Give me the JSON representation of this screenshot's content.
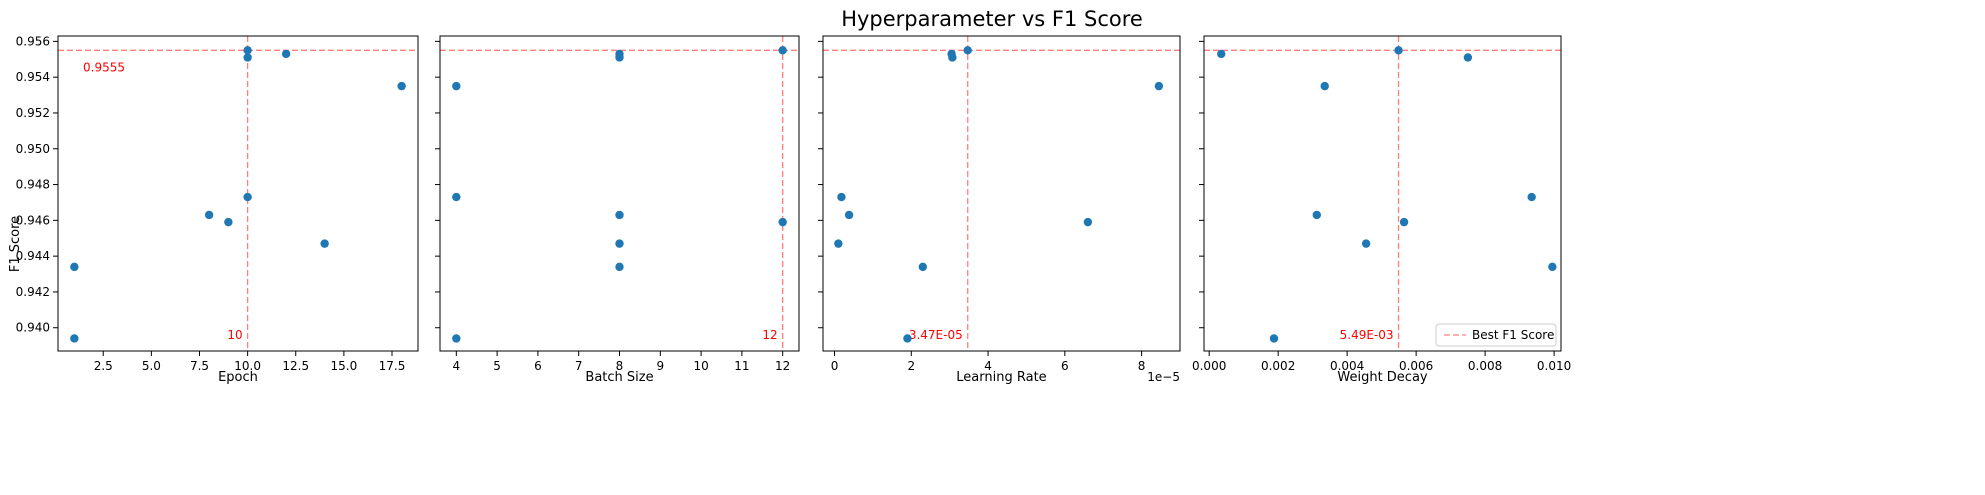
{
  "figure": {
    "title": "Hyperparameter vs F1 Score",
    "ylabel": "F1 Score",
    "legend": {
      "label": "Best F1 Score",
      "placement": "lower-right",
      "panel": 3
    }
  },
  "colors": {
    "points": "#1f77b4",
    "best_line": "#ff0000",
    "annotation": "#ff0000",
    "axes": "#000000"
  },
  "chart_data": [
    {
      "type": "scatter",
      "title": "",
      "xlabel": "Epoch",
      "ylabel": "F1 Score",
      "xlim": [
        0.15,
        18.85
      ],
      "ylim": [
        0.9387,
        0.9563
      ],
      "xticks": [
        2.5,
        5.0,
        7.5,
        10.0,
        12.5,
        15.0,
        17.5
      ],
      "xtick_labels": [
        "2.5",
        "5.0",
        "7.5",
        "10.0",
        "12.5",
        "15.0",
        "17.5"
      ],
      "yticks": [
        0.94,
        0.942,
        0.944,
        0.946,
        0.948,
        0.95,
        0.952,
        0.954,
        0.956
      ],
      "ytick_labels": [
        "0.940",
        "0.942",
        "0.944",
        "0.946",
        "0.948",
        "0.950",
        "0.952",
        "0.954",
        "0.956"
      ],
      "x": [
        1,
        1,
        8,
        9,
        10,
        10,
        10,
        12,
        14,
        18
      ],
      "y": [
        0.9394,
        0.9434,
        0.9463,
        0.9459,
        0.9473,
        0.9551,
        0.9555,
        0.9553,
        0.9447,
        0.9535
      ],
      "best": {
        "x": 10,
        "y": 0.9555,
        "x_label": "10",
        "y_label": "0.9555"
      },
      "grid": false
    },
    {
      "type": "scatter",
      "title": "",
      "xlabel": "Batch Size",
      "ylabel": "",
      "xlim": [
        3.6,
        12.4
      ],
      "ylim": [
        0.9387,
        0.9563
      ],
      "xticks": [
        4,
        5,
        6,
        7,
        8,
        9,
        10,
        11,
        12
      ],
      "xtick_labels": [
        "4",
        "5",
        "6",
        "7",
        "8",
        "9",
        "10",
        "11",
        "12"
      ],
      "yticks": [
        0.94,
        0.942,
        0.944,
        0.946,
        0.948,
        0.95,
        0.952,
        0.954,
        0.956
      ],
      "ytick_labels": [],
      "x": [
        4,
        4,
        4,
        8,
        8,
        8,
        8,
        8,
        12,
        12
      ],
      "y": [
        0.9394,
        0.9473,
        0.9535,
        0.9434,
        0.9447,
        0.9463,
        0.9551,
        0.9553,
        0.9459,
        0.9555
      ],
      "best": {
        "x": 12,
        "y": 0.9555,
        "x_label": "12"
      },
      "grid": false
    },
    {
      "type": "scatter",
      "title": "",
      "xlabel": "Learning Rate",
      "ylabel": "",
      "x_offset_label": "1e−5",
      "xlim": [
        -0.3,
        9.0
      ],
      "ylim": [
        0.9387,
        0.9563
      ],
      "xticks": [
        0,
        2,
        4,
        6,
        8
      ],
      "xtick_labels": [
        "0",
        "2",
        "4",
        "6",
        "8"
      ],
      "yticks": [
        0.94,
        0.942,
        0.944,
        0.946,
        0.948,
        0.95,
        0.952,
        0.954,
        0.956
      ],
      "ytick_labels": [],
      "x": [
        0.1,
        0.18,
        0.38,
        1.9,
        2.3,
        3.05,
        3.07,
        3.47,
        6.6,
        8.45
      ],
      "y": [
        0.9447,
        0.9473,
        0.9463,
        0.9394,
        0.9434,
        0.9553,
        0.9551,
        0.9555,
        0.9459,
        0.9535
      ],
      "best": {
        "x": 3.47,
        "y": 0.9555,
        "x_label": "3.47E-05"
      },
      "grid": false
    },
    {
      "type": "scatter",
      "title": "",
      "xlabel": "Weight Decay",
      "ylabel": "",
      "xlim": [
        -0.00015,
        0.0102
      ],
      "ylim": [
        0.9387,
        0.9563
      ],
      "xticks": [
        0.0,
        0.002,
        0.004,
        0.006,
        0.008,
        0.01
      ],
      "xtick_labels": [
        "0.000",
        "0.002",
        "0.004",
        "0.006",
        "0.008",
        "0.010"
      ],
      "yticks": [
        0.94,
        0.942,
        0.944,
        0.946,
        0.948,
        0.95,
        0.952,
        0.954,
        0.956
      ],
      "ytick_labels": [],
      "x": [
        0.00035,
        0.00188,
        0.00312,
        0.00335,
        0.00455,
        0.00549,
        0.00565,
        0.0075,
        0.00935,
        0.00995
      ],
      "y": [
        0.9553,
        0.9394,
        0.9463,
        0.9535,
        0.9447,
        0.9555,
        0.9459,
        0.9551,
        0.9473,
        0.9434
      ],
      "best": {
        "x": 0.00549,
        "y": 0.9555,
        "x_label": "5.49E-03"
      },
      "grid": false
    }
  ]
}
